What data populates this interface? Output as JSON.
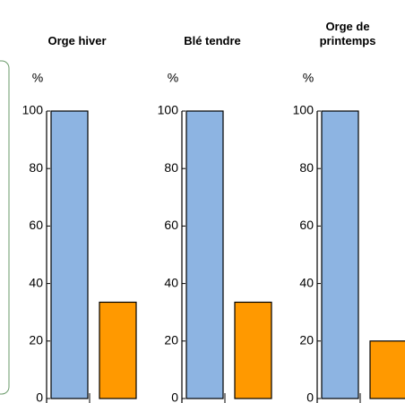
{
  "chart_data": [
    {
      "type": "bar",
      "title": "Orge hiver",
      "ylabel": "%",
      "categories": [
        null,
        null
      ],
      "values": [
        100,
        33.5
      ],
      "colors": [
        "#8db4e2",
        "#ff9900"
      ],
      "ylim": [
        0,
        100
      ],
      "yticks": [
        0,
        20,
        40,
        60,
        80,
        100
      ]
    },
    {
      "type": "bar",
      "title": "Blé tendre",
      "ylabel": "%",
      "categories": [
        null,
        null
      ],
      "values": [
        100,
        33.5
      ],
      "colors": [
        "#8db4e2",
        "#ff9900"
      ],
      "ylim": [
        0,
        100
      ],
      "yticks": [
        0,
        20,
        40,
        60,
        80,
        100
      ]
    },
    {
      "type": "bar",
      "title": "Orge de printemps",
      "ylabel": "%",
      "categories": [
        null,
        null
      ],
      "values": [
        100,
        20
      ],
      "colors": [
        "#8db4e2",
        "#ff9900"
      ],
      "ylim": [
        0,
        100
      ],
      "yticks": [
        0,
        20,
        40,
        60,
        80,
        100
      ]
    }
  ]
}
